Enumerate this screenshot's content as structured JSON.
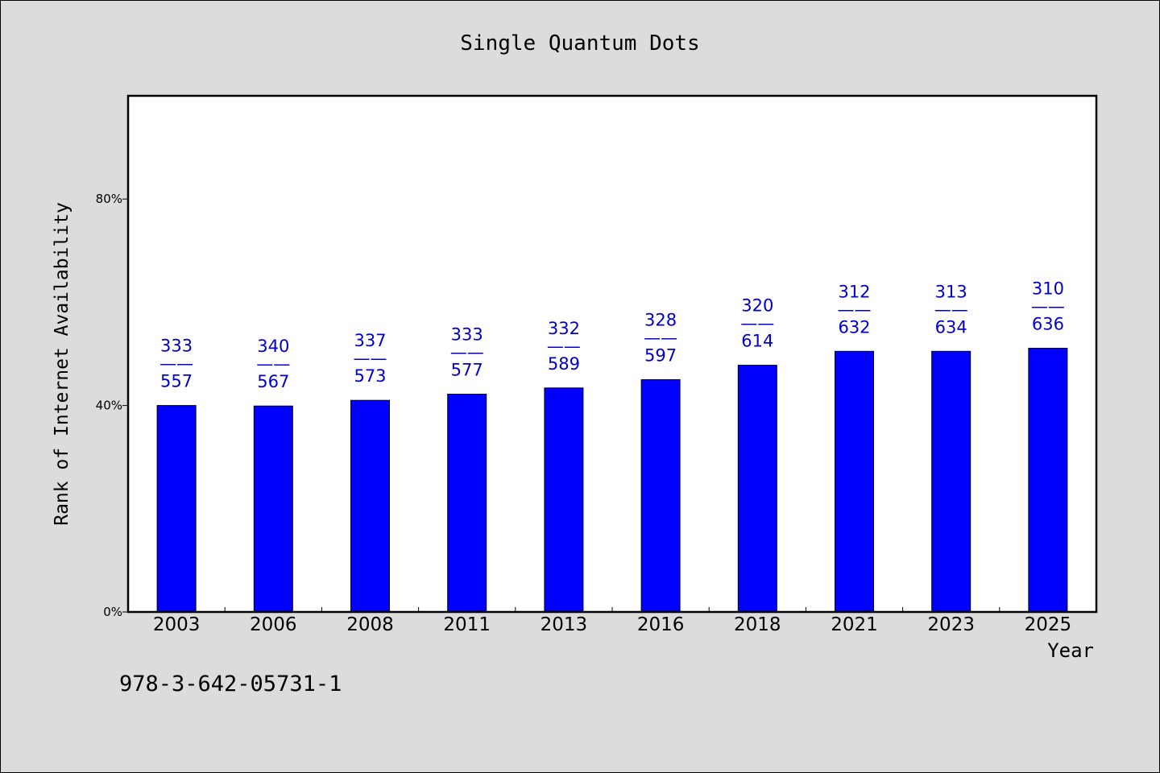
{
  "colors": {
    "bar": "#0000ff",
    "label": "#0000cc",
    "background": "#dcdcdc",
    "plot": "#ffffff"
  },
  "footnote": "978-3-642-05731-1",
  "chart_data": {
    "type": "bar",
    "title": "Single Quantum Dots",
    "xlabel": "Year",
    "ylabel": "Rank of Internet Availability",
    "ylim": [
      0,
      100
    ],
    "yticks": [
      {
        "value": 0,
        "label": "0%"
      },
      {
        "value": 40,
        "label": "40%"
      },
      {
        "value": 80,
        "label": "80%"
      }
    ],
    "grid": false,
    "categories": [
      "2003",
      "2006",
      "2008",
      "2011",
      "2013",
      "2016",
      "2018",
      "2021",
      "2023",
      "2025"
    ],
    "values": [
      40.0,
      39.9,
      41.0,
      42.2,
      43.4,
      45.0,
      47.8,
      50.5,
      50.5,
      51.1
    ],
    "label_top": [
      "333",
      "340",
      "337",
      "333",
      "332",
      "328",
      "320",
      "312",
      "313",
      "310"
    ],
    "label_sep": "——",
    "label_bottom": [
      "557",
      "567",
      "573",
      "577",
      "589",
      "597",
      "614",
      "632",
      "634",
      "636"
    ]
  }
}
